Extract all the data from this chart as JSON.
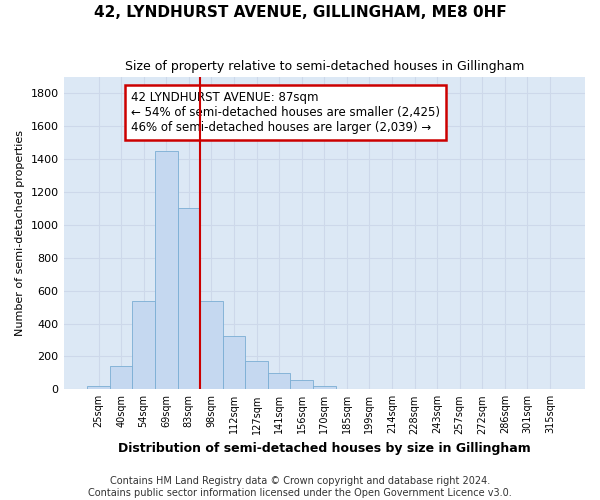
{
  "title": "42, LYNDHURST AVENUE, GILLINGHAM, ME8 0HF",
  "subtitle": "Size of property relative to semi-detached houses in Gillingham",
  "xlabel": "Distribution of semi-detached houses by size in Gillingham",
  "ylabel": "Number of semi-detached properties",
  "footnote1": "Contains HM Land Registry data © Crown copyright and database right 2024.",
  "footnote2": "Contains public sector information licensed under the Open Government Licence v3.0.",
  "bar_values": [
    20,
    140,
    540,
    1450,
    1100,
    540,
    325,
    175,
    100,
    55,
    20,
    0,
    0,
    0,
    0,
    0,
    0,
    0,
    0,
    0,
    0
  ],
  "bar_labels": [
    "25sqm",
    "40sqm",
    "54sqm",
    "69sqm",
    "83sqm",
    "98sqm",
    "112sqm",
    "127sqm",
    "141sqm",
    "156sqm",
    "170sqm",
    "185sqm",
    "199sqm",
    "214sqm",
    "228sqm",
    "243sqm",
    "257sqm",
    "272sqm",
    "286sqm",
    "301sqm",
    "315sqm"
  ],
  "bar_color": "#c5d8f0",
  "bar_edge_color": "#7aadd4",
  "ylim": [
    0,
    1900
  ],
  "yticks": [
    0,
    200,
    400,
    600,
    800,
    1000,
    1200,
    1400,
    1600,
    1800
  ],
  "red_line_x": 4.5,
  "annotation_title": "42 LYNDHURST AVENUE: 87sqm",
  "annotation_line1": "← 54% of semi-detached houses are smaller (2,425)",
  "annotation_line2": "46% of semi-detached houses are larger (2,039) →",
  "annotation_box_color": "#cc0000",
  "grid_color": "#cdd8ea",
  "bg_color": "#dce8f5",
  "title_fontsize": 11,
  "subtitle_fontsize": 9,
  "xlabel_fontsize": 9,
  "ylabel_fontsize": 8,
  "footnote_fontsize": 7,
  "ann_fontsize": 8.5
}
